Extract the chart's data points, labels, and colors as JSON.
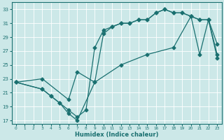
{
  "xlabel": "Humidex (Indice chaleur)",
  "bg_color": "#cce8e8",
  "grid_color": "#ffffff",
  "line_color": "#1a7070",
  "xlim": [
    -0.5,
    23.5
  ],
  "ylim": [
    16.5,
    34.0
  ],
  "xticks": [
    0,
    1,
    2,
    3,
    4,
    5,
    6,
    7,
    8,
    9,
    10,
    11,
    12,
    13,
    14,
    15,
    16,
    17,
    18,
    19,
    20,
    21,
    22,
    23
  ],
  "yticks": [
    17,
    19,
    21,
    23,
    25,
    27,
    29,
    31,
    33
  ],
  "curve1_x": [
    0,
    3,
    4,
    5,
    6,
    7,
    8,
    9,
    10,
    11,
    12,
    13,
    14,
    15,
    16,
    17,
    18,
    19,
    20,
    21,
    22,
    23
  ],
  "curve1_y": [
    22.5,
    21.5,
    20.5,
    19.5,
    18.5,
    17.5,
    18.5,
    27.5,
    30.0,
    30.5,
    31.0,
    31.0,
    31.5,
    31.5,
    32.5,
    33.0,
    32.5,
    32.5,
    32.0,
    31.5,
    31.5,
    28.0
  ],
  "curve2_x": [
    0,
    3,
    4,
    5,
    6,
    7,
    9,
    10,
    11,
    12,
    13,
    14,
    15,
    16,
    17,
    18,
    19,
    20,
    21,
    22,
    23
  ],
  "curve2_y": [
    22.5,
    21.5,
    20.5,
    19.5,
    18.0,
    17.0,
    22.5,
    29.5,
    30.5,
    31.0,
    31.0,
    31.5,
    31.5,
    32.5,
    33.0,
    32.5,
    32.5,
    32.0,
    31.5,
    31.5,
    26.5
  ],
  "curve3_x": [
    0,
    3,
    6,
    7,
    9,
    12,
    15,
    18,
    20,
    21,
    22,
    23
  ],
  "curve3_y": [
    22.5,
    23.0,
    20.0,
    24.0,
    22.5,
    25.0,
    26.5,
    27.5,
    32.0,
    26.5,
    31.5,
    26.0
  ],
  "marker": "D",
  "markersize": 2.5,
  "linewidth": 0.9,
  "tick_labelsize": 5,
  "xlabel_fontsize": 6
}
